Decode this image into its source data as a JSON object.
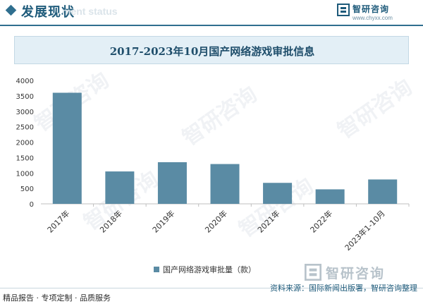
{
  "header": {
    "section_title": "发展现状",
    "section_subtitle": "ment status",
    "brand_name": "智研咨询",
    "brand_url": "www.chyxx.com"
  },
  "chart_title": "2017-2023年10月国产网络游戏审批信息",
  "watermark_text": "智研咨询",
  "footer": {
    "left": "精品报告 · 专项定制 · 品质服务",
    "source": "资料来源：国际新闻出版署，智研咨询整理",
    "brand_bottom": "智研咨询"
  },
  "colors": {
    "bar": "#5a8ba4",
    "accent": "#2f6f8f"
  },
  "chart_data": {
    "type": "bar",
    "title": "2017-2023年10月国产网络游戏审批信息",
    "categories": [
      "2017年",
      "2018年",
      "2019年",
      "2020年",
      "2021年",
      "2022年",
      "2023年1-10月"
    ],
    "series": [
      {
        "name": "国产网络游戏审批量（款）",
        "values": [
          3600,
          1050,
          1350,
          1290,
          680,
          470,
          790
        ]
      }
    ],
    "yticks": [
      0,
      500,
      1000,
      1500,
      2000,
      2500,
      3000,
      3500,
      4000
    ],
    "ylim": [
      0,
      4000
    ],
    "xlabel": "",
    "ylabel": "",
    "grid": false,
    "legend_position": "bottom"
  }
}
